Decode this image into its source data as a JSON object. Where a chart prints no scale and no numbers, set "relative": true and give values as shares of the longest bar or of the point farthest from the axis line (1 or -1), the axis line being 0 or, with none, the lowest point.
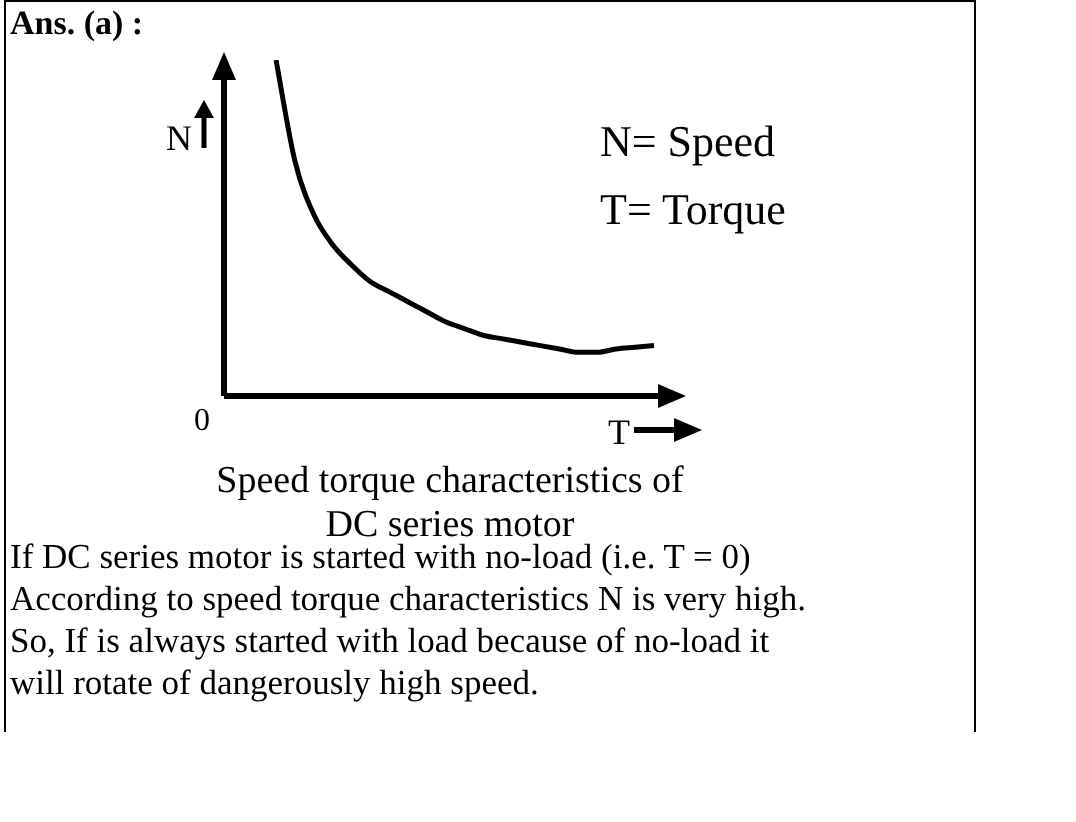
{
  "chart_data": {
    "type": "line",
    "relative": true,
    "title": "Speed torque characteristics of DC series motor",
    "ylabel": "N",
    "xlabel": "T",
    "categories": [
      null,
      null,
      null,
      null,
      null,
      null,
      null,
      null,
      null,
      null,
      null,
      null,
      null,
      null,
      null,
      null,
      null,
      null,
      null,
      null,
      null
    ],
    "series": [
      {
        "color": "#000000",
        "values": [
          1.0,
          0.7,
          0.54,
          0.45,
          0.39,
          0.34,
          0.31,
          0.28,
          0.25,
          0.22,
          0.2,
          0.18,
          0.17,
          0.16,
          0.15,
          0.14,
          0.13,
          0.13,
          0.14,
          0.145,
          0.15
        ]
      }
    ],
    "marker": "none",
    "line_style": "solid",
    "legend": false,
    "annotations": [
      "Ans. (a) :",
      "0",
      "N= Speed",
      "T= Torque",
      "If DC series motor is started with no-load (i.e. T = 0)\nAccording to speed torque characteristics N is very high.\nSo, If is always started with load because of no-load it\nwill rotate of dangerously high speed."
    ]
  }
}
